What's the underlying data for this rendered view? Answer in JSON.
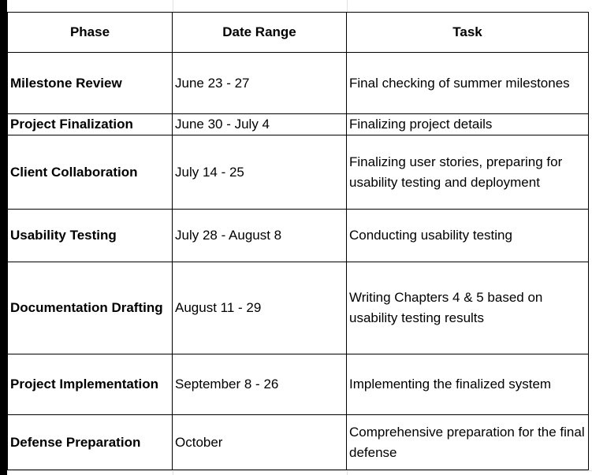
{
  "table": {
    "headers": {
      "phase": "Phase",
      "date_range": "Date Range",
      "task": "Task"
    },
    "rows": [
      {
        "phase": "Milestone Review",
        "date_range": "June 23 - 27",
        "task": "Final checking of summer milestones"
      },
      {
        "phase": "Project Finalization",
        "date_range": "June 30 - July 4",
        "task": "Finalizing project details"
      },
      {
        "phase": "Client Collaboration",
        "date_range": "July 14 - 25",
        "task": "Finalizing user stories, preparing for usability testing and deployment"
      },
      {
        "phase": "Usability Testing",
        "date_range": "July 28 - August 8",
        "task": "Conducting usability testing"
      },
      {
        "phase": "Documentation Drafting",
        "date_range": "August 11 - 29",
        "task": "Writing Chapters 4 & 5 based on usability testing results"
      },
      {
        "phase": "Project Implementation",
        "date_range": "September 8 - 26",
        "task": "Implementing the finalized system"
      },
      {
        "phase": "Defense Preparation",
        "date_range": "October",
        "task": "Comprehensive preparation for the final defense"
      }
    ]
  },
  "colors": {
    "border": "#000000",
    "gridline": "#e1e1e1",
    "background": "#ffffff"
  }
}
